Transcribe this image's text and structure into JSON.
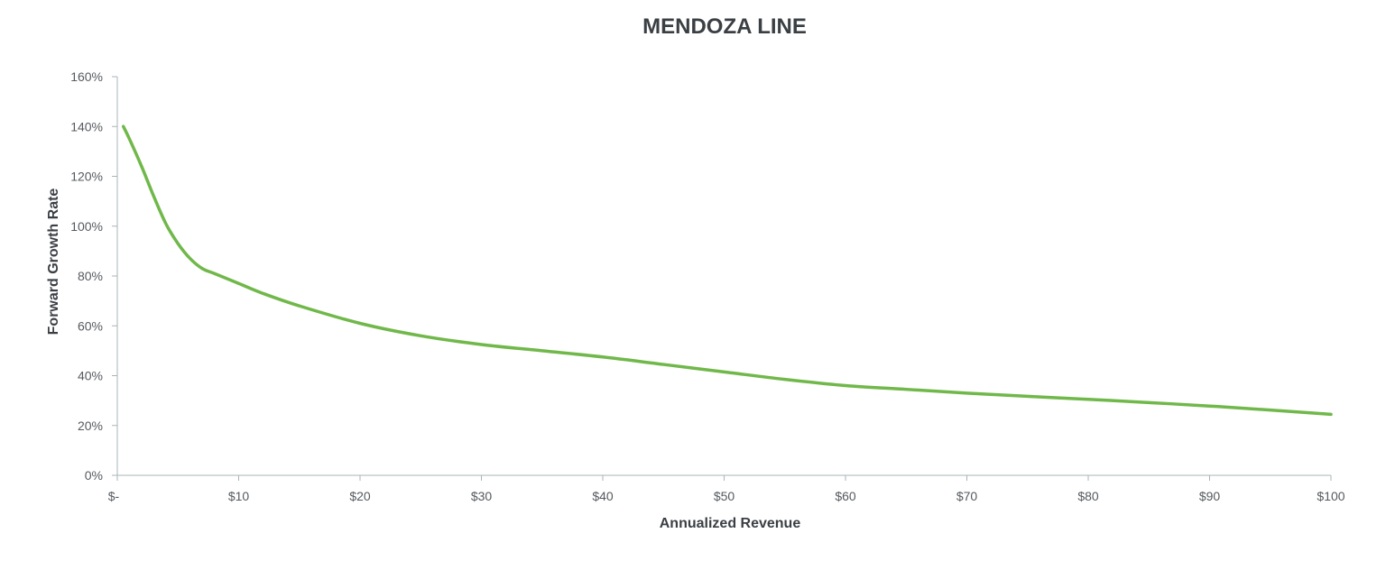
{
  "chart_data": {
    "type": "line",
    "title": "MENDOZA LINE",
    "xlabel": "Annualized Revenue",
    "ylabel": "Forward Growth Rate",
    "xlim": [
      0,
      100
    ],
    "ylim": [
      0,
      1.6
    ],
    "x_ticks": [
      {
        "value": 0,
        "label": "$-"
      },
      {
        "value": 10,
        "label": "$10"
      },
      {
        "value": 20,
        "label": "$20"
      },
      {
        "value": 30,
        "label": "$30"
      },
      {
        "value": 40,
        "label": "$40"
      },
      {
        "value": 50,
        "label": "$50"
      },
      {
        "value": 60,
        "label": "$60"
      },
      {
        "value": 70,
        "label": "$70"
      },
      {
        "value": 80,
        "label": "$80"
      },
      {
        "value": 90,
        "label": "$90"
      },
      {
        "value": 100,
        "label": "$100"
      }
    ],
    "y_ticks": [
      {
        "value": 0,
        "label": "0%"
      },
      {
        "value": 0.2,
        "label": "20%"
      },
      {
        "value": 0.4,
        "label": "40%"
      },
      {
        "value": 0.6,
        "label": "60%"
      },
      {
        "value": 0.8,
        "label": "80%"
      },
      {
        "value": 1.0,
        "label": "100%"
      },
      {
        "value": 1.2,
        "label": "120%"
      },
      {
        "value": 1.4,
        "label": "140%"
      },
      {
        "value": 1.6,
        "label": "160%"
      }
    ],
    "grid": false,
    "legend": "none",
    "series": [
      {
        "color": "#70b84a",
        "x": [
          0.5,
          1,
          2,
          3,
          4,
          5,
          6,
          7,
          8,
          10,
          12,
          15,
          20,
          25,
          30,
          35,
          40,
          45,
          50,
          55,
          60,
          65,
          70,
          75,
          80,
          85,
          90,
          95,
          100
        ],
        "y": [
          1.4,
          1.35,
          1.24,
          1.12,
          1.01,
          0.93,
          0.87,
          0.83,
          0.81,
          0.77,
          0.73,
          0.68,
          0.61,
          0.56,
          0.525,
          0.5,
          0.475,
          0.445,
          0.415,
          0.385,
          0.36,
          0.345,
          0.33,
          0.317,
          0.305,
          0.292,
          0.278,
          0.262,
          0.245
        ]
      }
    ]
  }
}
